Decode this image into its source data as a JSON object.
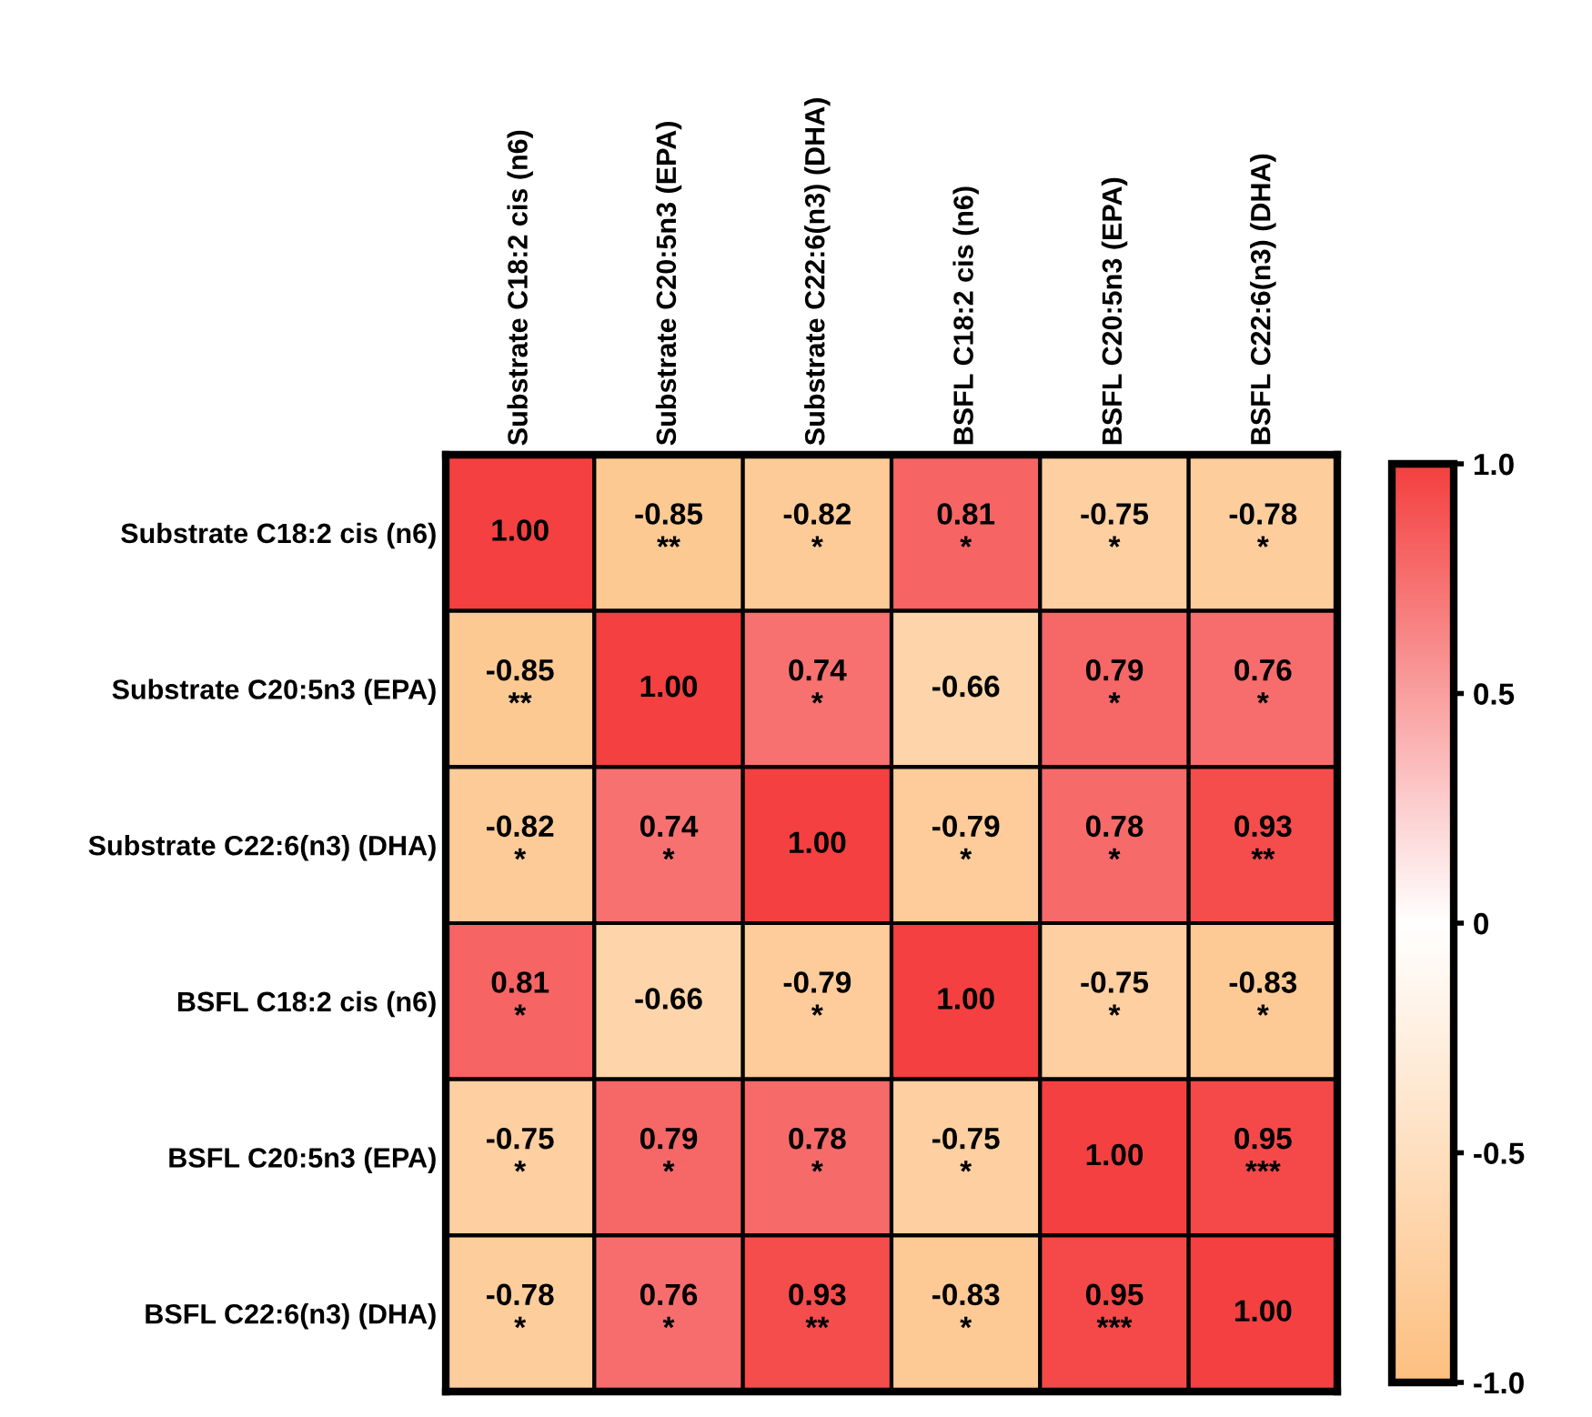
{
  "chart_data": {
    "type": "heatmap",
    "categories": [
      "Substrate C18:2 cis (n6)",
      "Substrate C20:5n3 (EPA)",
      "Substrate C22:6(n3) (DHA)",
      "BSFL C18:2 cis (n6)",
      "BSFL C20:5n3 (EPA)",
      "BSFL C22:6(n3) (DHA)"
    ],
    "y_categories": [
      "Substrate C18:2 cis (n6)",
      "Substrate C20:5n3 (EPA)",
      "Substrate C22:6(n3) (DHA)",
      "BSFL C18:2 cis (n6)",
      "BSFL C20:5n3 (EPA)",
      "BSFL C22:6(n3) (DHA)"
    ],
    "cells": [
      [
        1.0,
        -0.85,
        -0.82,
        0.81,
        -0.75,
        -0.78
      ],
      [
        -0.85,
        1.0,
        0.74,
        -0.66,
        0.79,
        0.76
      ],
      [
        -0.82,
        0.74,
        1.0,
        -0.79,
        0.78,
        0.93
      ],
      [
        0.81,
        -0.66,
        -0.79,
        1.0,
        -0.75,
        -0.83
      ],
      [
        -0.75,
        0.79,
        0.78,
        -0.75,
        1.0,
        0.95
      ],
      [
        -0.78,
        0.76,
        0.93,
        -0.83,
        0.95,
        1.0
      ]
    ],
    "cell_labels": [
      [
        "1.00",
        "-0.85\n**",
        "-0.82\n*",
        "0.81\n*",
        "-0.75\n*",
        "-0.78\n*"
      ],
      [
        "-0.85\n**",
        "1.00",
        "0.74\n*",
        "-0.66",
        "0.79\n*",
        "0.76\n*"
      ],
      [
        "-0.82\n*",
        "0.74\n*",
        "1.00",
        "-0.79\n*",
        "0.78\n*",
        "0.93\n**"
      ],
      [
        "0.81\n*",
        "-0.66",
        "-0.79\n*",
        "1.00",
        "-0.75\n*",
        "-0.83\n*"
      ],
      [
        "-0.75\n*",
        "0.79\n*",
        "0.78\n*",
        "-0.75\n*",
        "1.00",
        "0.95\n***"
      ],
      [
        "-0.78\n*",
        "0.76\n*",
        "0.93\n**",
        "-0.83\n*",
        "0.95\n***",
        "1.00"
      ]
    ],
    "clim": [
      -1.0,
      1.0
    ],
    "cticks": [
      {
        "value": 1.0,
        "label": "1.0"
      },
      {
        "value": 0.5,
        "label": "0.5"
      },
      0,
      {
        "value": -0.5,
        "label": "-0.5"
      },
      {
        "value": -1.0,
        "label": "-1.0"
      }
    ]
  }
}
